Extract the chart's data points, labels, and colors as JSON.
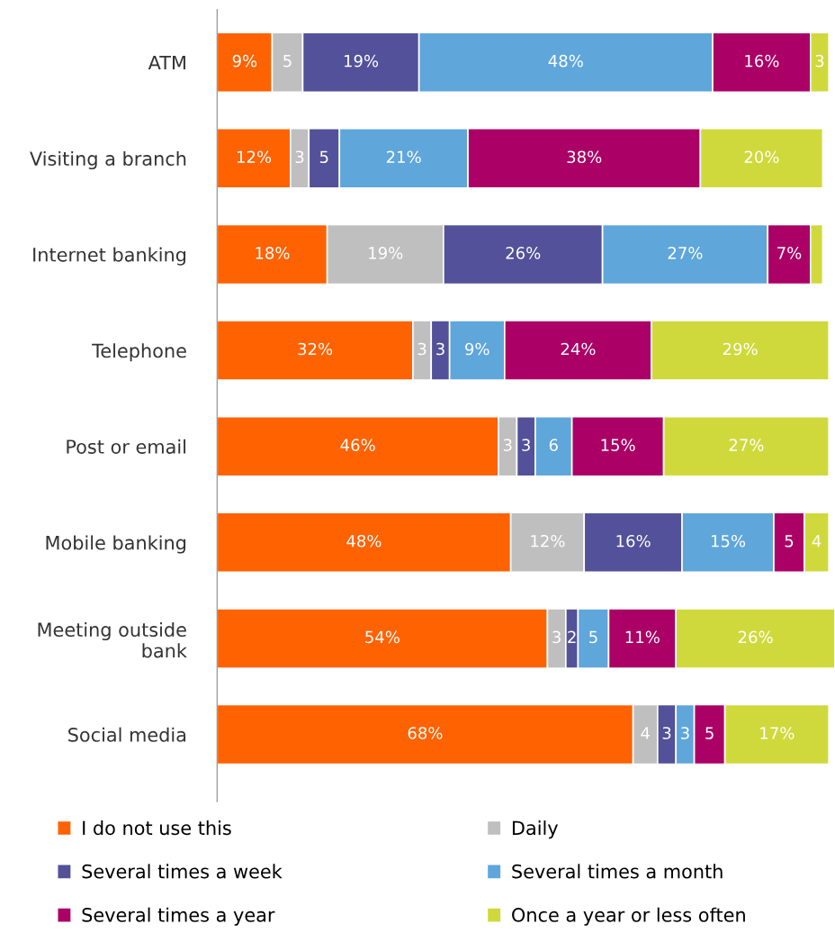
{
  "chart_data": {
    "type": "bar",
    "orientation": "horizontal",
    "stacked": true,
    "legend": "bottom",
    "tick_labels": "y",
    "grid": false,
    "xlim": [
      0,
      101
    ],
    "categories": [
      "ATM",
      "Visiting a branch",
      "Internet banking",
      "Telephone",
      "Post or email",
      "Mobile banking",
      "Meeting outside\nbank",
      "Social media"
    ],
    "series": [
      {
        "name": "I do not use this",
        "color": "#ff6200",
        "values": [
          9,
          12,
          18,
          32,
          46,
          48,
          54,
          68
        ],
        "value_labels": [
          "9%",
          "12%",
          "18%",
          "32%",
          "46%",
          "48%",
          "54%",
          "68%"
        ]
      },
      {
        "name": "Daily",
        "color": "#bfbfbf",
        "values": [
          5,
          3,
          19,
          3,
          3,
          12,
          3,
          4
        ],
        "value_labels": [
          "5",
          "3",
          "19%",
          "3",
          "3",
          "12%",
          "3",
          "4"
        ]
      },
      {
        "name": "Several times a week",
        "color": "#525199",
        "values": [
          19,
          5,
          26,
          3,
          3,
          16,
          2,
          3
        ],
        "value_labels": [
          "19%",
          "5",
          "26%",
          "3",
          "3",
          "16%",
          "2",
          "3"
        ]
      },
      {
        "name": "Several times a month",
        "color": "#5fa6db",
        "values": [
          48,
          21,
          27,
          9,
          6,
          15,
          5,
          3
        ],
        "value_labels": [
          "48%",
          "21%",
          "27%",
          "9%",
          "6",
          "15%",
          "5",
          "3"
        ]
      },
      {
        "name": "Several times a year",
        "color": "#ab0066",
        "values": [
          16,
          38,
          7,
          24,
          15,
          5,
          11,
          5
        ],
        "value_labels": [
          "16%",
          "38%",
          "7%",
          "24%",
          "15%",
          "5",
          "11%",
          "5"
        ]
      },
      {
        "name": "Once a year or less often",
        "color": "#d0d93c",
        "values": [
          3,
          20,
          2,
          29,
          27,
          4,
          26,
          17
        ],
        "value_labels": [
          "3",
          "20%",
          null,
          "29%",
          "27%",
          "4",
          "26%",
          "17%"
        ]
      }
    ]
  }
}
